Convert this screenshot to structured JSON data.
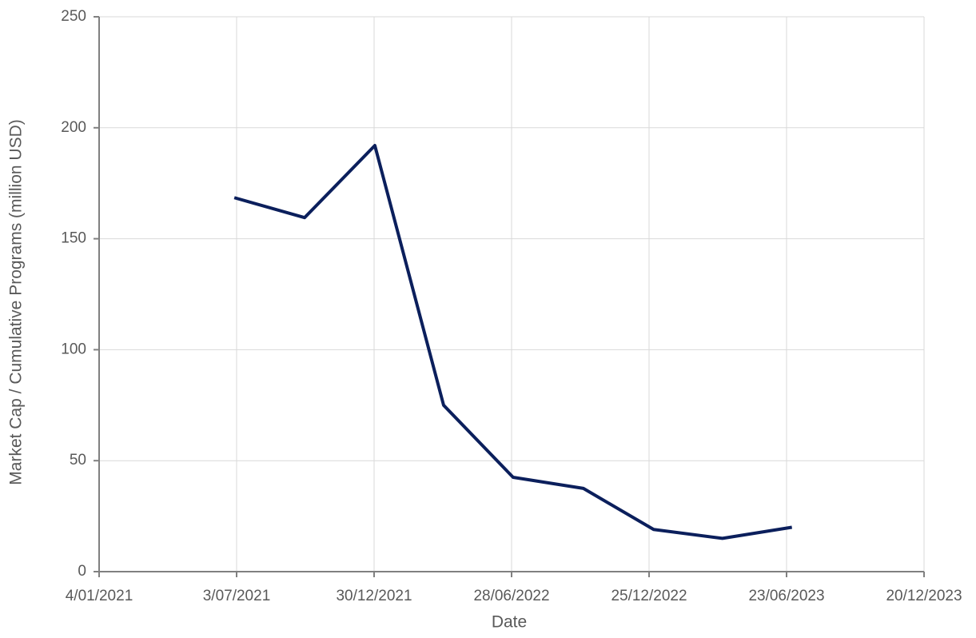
{
  "chart_data": {
    "type": "line",
    "x_label": "Date",
    "y_label": "Market Cap / Cumulative Programs (million USD)",
    "x": [
      "2021-06-30",
      "2021-09-30",
      "2021-12-31",
      "2022-03-31",
      "2022-06-30",
      "2022-09-30",
      "2022-12-31",
      "2023-03-31",
      "2023-06-30"
    ],
    "series": [
      {
        "color": "#0b1f5c",
        "values": [
          168.5,
          159.5,
          192,
          75,
          42.5,
          37.5,
          19,
          15,
          20
        ]
      }
    ],
    "xlim": [
      "2021-01-04",
      "2023-12-20"
    ],
    "xticks": [
      {
        "value": "2021-01-04",
        "label": "4/01/2021"
      },
      {
        "value": "2021-07-03",
        "label": "3/07/2021"
      },
      {
        "value": "2021-12-30",
        "label": "30/12/2021"
      },
      {
        "value": "2022-06-28",
        "label": "28/06/2022"
      },
      {
        "value": "2022-12-25",
        "label": "25/12/2022"
      },
      {
        "value": "2023-06-23",
        "label": "23/06/2023"
      },
      {
        "value": "2023-12-20",
        "label": "20/12/2023"
      }
    ],
    "ylim": [
      0,
      250
    ],
    "yticks": [
      0,
      50,
      100,
      150,
      200,
      250
    ],
    "grid": true
  }
}
